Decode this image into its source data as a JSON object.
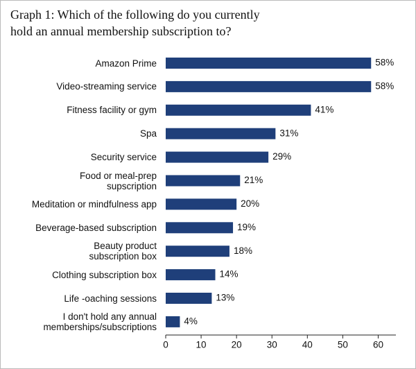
{
  "chart_data": {
    "type": "barh",
    "title": "Graph 1: Which of the following do you currently\nhold an annual membership subscription to?",
    "categories": [
      "Amazon Prime",
      "Video-streaming service",
      "Fitness facility or gym",
      "Spa",
      "Security service",
      "Food or meal-prep\nsupscription",
      "Meditation or mindfulness app",
      "Beverage-based subscription",
      "Beauty product\nsubscription box",
      "Clothing subscription box",
      "Life -oaching sessions",
      "I don't hold any annual\nmemberships/subscriptions"
    ],
    "values": [
      58,
      58,
      41,
      31,
      29,
      21,
      20,
      19,
      18,
      14,
      13,
      4
    ],
    "value_labels": [
      "58%",
      "58%",
      "41%",
      "31%",
      "29%",
      "21%",
      "20%",
      "19%",
      "18%",
      "14%",
      "13%",
      "4%"
    ],
    "color": "#1f3f7a",
    "xlim": [
      0,
      65
    ],
    "xticks": [
      0,
      10,
      20,
      30,
      40,
      50,
      60
    ]
  }
}
